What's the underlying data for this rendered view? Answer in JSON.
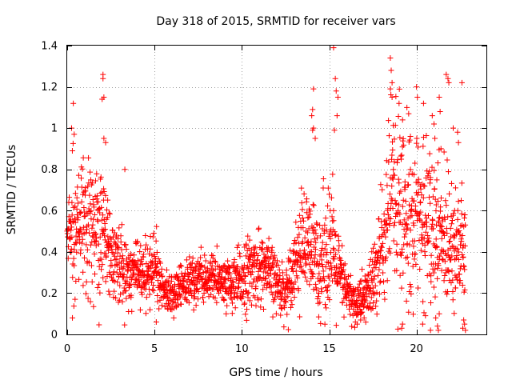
{
  "chart_data": {
    "type": "scatter",
    "title": "Day 318 of 2015, SRMTID for receiver vars",
    "xlabel": "GPS time / hours",
    "ylabel": "SRMTID / TECUs",
    "xlim": [
      0,
      24
    ],
    "ylim": [
      0,
      1.4
    ],
    "x_ticks": [
      0,
      5,
      10,
      15,
      20
    ],
    "x_tick_labels": [
      "0",
      "5",
      "10",
      "15",
      "20"
    ],
    "y_ticks": [
      0,
      0.2,
      0.4,
      0.6,
      0.8,
      1,
      1.2,
      1.4
    ],
    "y_tick_labels": [
      "0",
      "0.2",
      "0.4",
      "0.6",
      "0.8",
      "1",
      "1.2",
      "1.4"
    ],
    "grid": true,
    "marker": "plus",
    "color": "#ff0000",
    "series": [
      {
        "name": "receiver vars",
        "profile_hours": [
          0,
          0.5,
          1,
          1.5,
          2,
          2.5,
          3,
          3.5,
          4,
          4.5,
          5,
          5.5,
          6,
          6.5,
          7,
          7.5,
          8,
          8.5,
          9,
          9.5,
          10,
          10.5,
          11,
          11.5,
          12,
          12.5,
          13,
          13.5,
          14,
          14.5,
          15,
          15.5,
          16,
          16.5,
          17,
          17.5,
          18,
          18.5,
          19,
          19.5,
          20,
          20.5,
          21,
          21.5,
          22,
          22.5
        ],
        "profile_median": [
          0.45,
          0.52,
          0.55,
          0.55,
          0.55,
          0.4,
          0.33,
          0.3,
          0.3,
          0.3,
          0.3,
          0.22,
          0.2,
          0.22,
          0.25,
          0.27,
          0.27,
          0.27,
          0.25,
          0.22,
          0.28,
          0.3,
          0.33,
          0.3,
          0.25,
          0.2,
          0.35,
          0.45,
          0.38,
          0.35,
          0.45,
          0.3,
          0.2,
          0.15,
          0.18,
          0.25,
          0.4,
          0.65,
          0.6,
          0.55,
          0.6,
          0.55,
          0.5,
          0.45,
          0.5,
          0.4
        ],
        "profile_spread": [
          0.15,
          0.18,
          0.2,
          0.2,
          0.2,
          0.12,
          0.1,
          0.08,
          0.08,
          0.08,
          0.09,
          0.07,
          0.06,
          0.06,
          0.07,
          0.07,
          0.07,
          0.07,
          0.07,
          0.08,
          0.1,
          0.1,
          0.1,
          0.09,
          0.08,
          0.07,
          0.1,
          0.15,
          0.15,
          0.15,
          0.2,
          0.12,
          0.07,
          0.06,
          0.07,
          0.1,
          0.2,
          0.25,
          0.25,
          0.22,
          0.22,
          0.22,
          0.22,
          0.2,
          0.2,
          0.15
        ],
        "outliers": [
          [
            0.35,
            1.12
          ],
          [
            0.25,
            1.0
          ],
          [
            0.4,
            0.97
          ],
          [
            0.3,
            0.08
          ],
          [
            0.45,
            0.17
          ],
          [
            2.05,
            1.26
          ],
          [
            2.05,
            1.24
          ],
          [
            2.1,
            1.15
          ],
          [
            2.0,
            1.14
          ],
          [
            2.1,
            0.95
          ],
          [
            2.2,
            0.93
          ],
          [
            3.3,
            0.8
          ],
          [
            14.1,
            1.19
          ],
          [
            14.05,
            1.09
          ],
          [
            14.0,
            1.06
          ],
          [
            14.1,
            1.0
          ],
          [
            14.05,
            0.99
          ],
          [
            14.2,
            0.95
          ],
          [
            15.25,
            1.39
          ],
          [
            15.35,
            1.24
          ],
          [
            15.4,
            1.18
          ],
          [
            15.5,
            1.15
          ],
          [
            15.45,
            1.06
          ],
          [
            15.3,
            0.99
          ],
          [
            18.5,
            1.34
          ],
          [
            18.55,
            1.28
          ],
          [
            18.6,
            1.22
          ],
          [
            18.5,
            1.19
          ],
          [
            18.6,
            1.15
          ],
          [
            19.0,
            1.12
          ],
          [
            19.2,
            1.04
          ],
          [
            19.45,
            1.1
          ],
          [
            19.55,
            1.07
          ],
          [
            19.65,
            0.96
          ],
          [
            20.0,
            1.2
          ],
          [
            20.05,
            1.15
          ],
          [
            20.4,
            1.12
          ],
          [
            20.9,
            1.06
          ],
          [
            21.0,
            1.02
          ],
          [
            21.35,
            1.08
          ],
          [
            21.05,
            0.95
          ],
          [
            21.3,
            1.15
          ],
          [
            21.4,
            0.9
          ],
          [
            21.7,
            1.26
          ],
          [
            21.8,
            1.24
          ],
          [
            21.85,
            1.22
          ],
          [
            22.1,
            1.0
          ],
          [
            22.4,
            0.93
          ],
          [
            22.6,
            1.22
          ],
          [
            22.35,
            0.98
          ],
          [
            19.15,
            0.03
          ],
          [
            19.2,
            0.05
          ],
          [
            20.35,
            0.05
          ],
          [
            20.8,
            0.02
          ],
          [
            21.1,
            0.08
          ],
          [
            21.2,
            0.04
          ],
          [
            21.3,
            0.1
          ],
          [
            21.25,
            0.02
          ],
          [
            22.8,
            0.02
          ],
          [
            22.75,
            0.05
          ],
          [
            22.7,
            0.07
          ],
          [
            22.65,
            0.03
          ],
          [
            16.5,
            0.06
          ],
          [
            16.6,
            0.05
          ],
          [
            16.8,
            0.07
          ],
          [
            17.0,
            0.08
          ],
          [
            5.1,
            0.06
          ],
          [
            6.1,
            0.08
          ],
          [
            9.1,
            0.1
          ]
        ]
      }
    ]
  }
}
